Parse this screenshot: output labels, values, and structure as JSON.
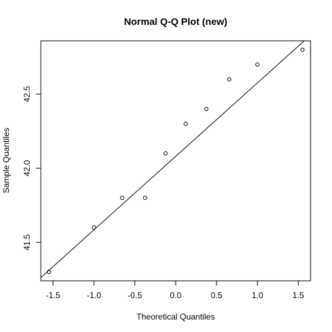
{
  "chart_data": {
    "type": "scatter",
    "title": "Normal Q-Q Plot (new)",
    "xlabel": "Theoretical Quantiles",
    "ylabel": "Sample Quantiles",
    "xlim": [
      -1.65,
      1.65
    ],
    "ylim": [
      41.24,
      42.86
    ],
    "xticks": [
      -1.5,
      -1.0,
      -0.5,
      0.0,
      0.5,
      1.0,
      1.5
    ],
    "xtick_labels": [
      "-1.5",
      "-1.0",
      "-0.5",
      "0.0",
      "0.5",
      "1.0",
      "1.5"
    ],
    "yticks": [
      41.5,
      42.0,
      42.5
    ],
    "ytick_labels": [
      "41.5",
      "42.0",
      "42.5"
    ],
    "grid": false,
    "points": [
      {
        "x": -1.55,
        "y": 41.3
      },
      {
        "x": -1.0,
        "y": 41.6
      },
      {
        "x": -0.655,
        "y": 41.8
      },
      {
        "x": -0.375,
        "y": 41.8
      },
      {
        "x": -0.123,
        "y": 42.1
      },
      {
        "x": 0.123,
        "y": 42.3
      },
      {
        "x": 0.375,
        "y": 42.4
      },
      {
        "x": 0.655,
        "y": 42.6
      },
      {
        "x": 1.0,
        "y": 42.7
      },
      {
        "x": 1.55,
        "y": 42.8
      }
    ],
    "reference_line": {
      "intercept": 42.08,
      "slope": 0.496
    }
  }
}
